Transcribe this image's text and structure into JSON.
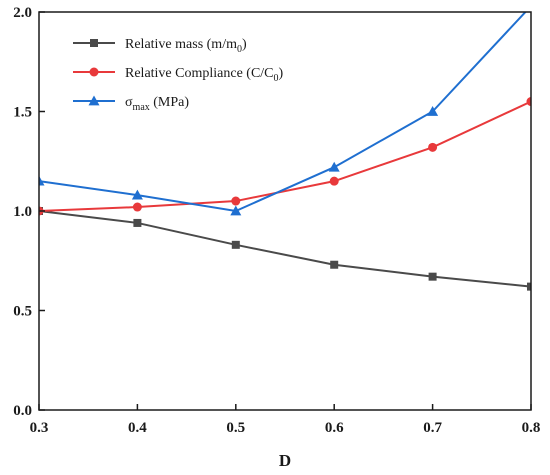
{
  "chart_data": {
    "type": "line",
    "title": "",
    "xlabel": "D",
    "ylabel": "",
    "xlim": [
      0.3,
      0.8
    ],
    "ylim": [
      0.0,
      2.0
    ],
    "x_ticks": [
      "0.3",
      "0.4",
      "0.5",
      "0.6",
      "0.7",
      "0.8"
    ],
    "y_ticks": [
      "0.0",
      "0.5",
      "1.0",
      "1.5",
      "2.0"
    ],
    "grid": false,
    "legend_position": "top-left",
    "x": [
      0.3,
      0.4,
      0.5,
      0.6,
      0.7,
      0.8
    ],
    "series": [
      {
        "name": "Relative mass (m/m0)",
        "legend_main": "Relative mass (m/m",
        "legend_sub": "0",
        "legend_tail": ")",
        "color": "#4a4a4a",
        "marker": "square",
        "values": [
          1.0,
          0.94,
          0.83,
          0.73,
          0.67,
          0.62
        ]
      },
      {
        "name": "Relative Compliance (C/C0)",
        "legend_main": "Relative Compliance (C/C",
        "legend_sub": "0",
        "legend_tail": ")",
        "color": "#e8393b",
        "marker": "circle",
        "values": [
          1.0,
          1.02,
          1.05,
          1.15,
          1.32,
          1.55
        ]
      },
      {
        "name": "σmax (MPa)",
        "legend_main": "σ",
        "legend_sub": "max",
        "legend_tail": " (MPa)",
        "color": "#1f6fd0",
        "marker": "triangle",
        "values": [
          1.15,
          1.08,
          1.0,
          1.22,
          1.5,
          2.03
        ]
      }
    ]
  }
}
